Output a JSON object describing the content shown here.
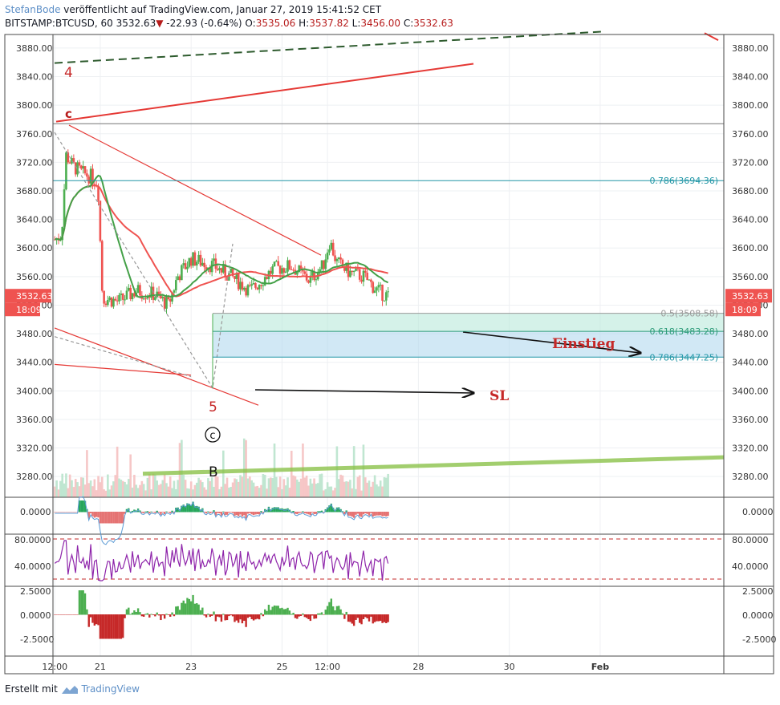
{
  "header": {
    "author": "StefanBode",
    "published": "veröffentlicht auf TradingView.com, Januar 27, 2019 15:41:52 CET",
    "symbol": "BITSTAMP:BTCUSD, 60",
    "last": "3532.63",
    "change": "-22.93 (-0.64%)",
    "open_label": "O:",
    "open": "3535.06",
    "high_label": "H:",
    "high": "3537.82",
    "low_label": "L:",
    "low": "3456.00",
    "close_label": "C:",
    "close": "3532.63"
  },
  "footer": {
    "made_with": "Erstellt mit",
    "brand": "TradingView"
  },
  "colors": {
    "up": "#4caf50",
    "down": "#ef5350",
    "fib": "#2196a6",
    "zone_green": "#b9eadb",
    "zone_blue": "#b3d8ee",
    "annotation_red": "#d32f2f",
    "trend_green": "#8bc34a",
    "rsi": "#8e24aa",
    "ma_red": "#ef5350",
    "ma_green": "#43a047"
  },
  "chart_data": [
    {
      "type": "candlestick",
      "title": "",
      "price_axis_ticks": [
        3280,
        3320,
        3360,
        3400,
        3440,
        3480,
        3520,
        3560,
        3600,
        3640,
        3680,
        3720,
        3760,
        3800,
        3840,
        3880
      ],
      "price_axis_tick_labels": [
        "3280.00",
        "3320.00",
        "3360.00",
        "3400.00",
        "3440.00",
        "3480.00",
        "3520.00",
        "3560.00",
        "3600.00",
        "3640.00",
        "3680.00",
        "3720.00",
        "3760.00",
        "3800.00",
        "3840.00",
        "3880.00"
      ],
      "ylim": [
        3251,
        3899
      ],
      "time_axis_labels": [
        "12:00",
        "21",
        "23",
        "25",
        "12:00",
        "28",
        "30",
        "Feb"
      ],
      "xlim_days": [
        19.96,
        34.72
      ],
      "current_price_label": "3532.63",
      "countdown_label": "18:09",
      "fib_levels": [
        {
          "label": "0.786(3694.36)",
          "price": 3694.36
        },
        {
          "label": "0.5(3508.58)",
          "price": 3508.58
        },
        {
          "label": "0.618(3483.28)",
          "price": 3483.28
        },
        {
          "label": "0.786(3447.25)",
          "price": 3447.25
        }
      ],
      "annotations": [
        {
          "text": "4",
          "price": 3848
        },
        {
          "text": "c",
          "price": 3790
        },
        {
          "text": "5",
          "price": 3380
        },
        {
          "text": "c",
          "price": 3334,
          "circled": true
        },
        {
          "text": "B",
          "price": 3282
        },
        {
          "text": "Einstieg",
          "price": 3465
        },
        {
          "text": "SL",
          "price": 3396
        }
      ],
      "indicator_panes": [
        {
          "name": "",
          "tick_labels": [
            "0.0000"
          ]
        },
        {
          "name": "",
          "tick_labels": [
            "80.0000",
            "40.0000"
          ]
        },
        {
          "name": "",
          "tick_labels": [
            "2.5000",
            "0.0000",
            "-2.5000"
          ]
        }
      ]
    }
  ]
}
